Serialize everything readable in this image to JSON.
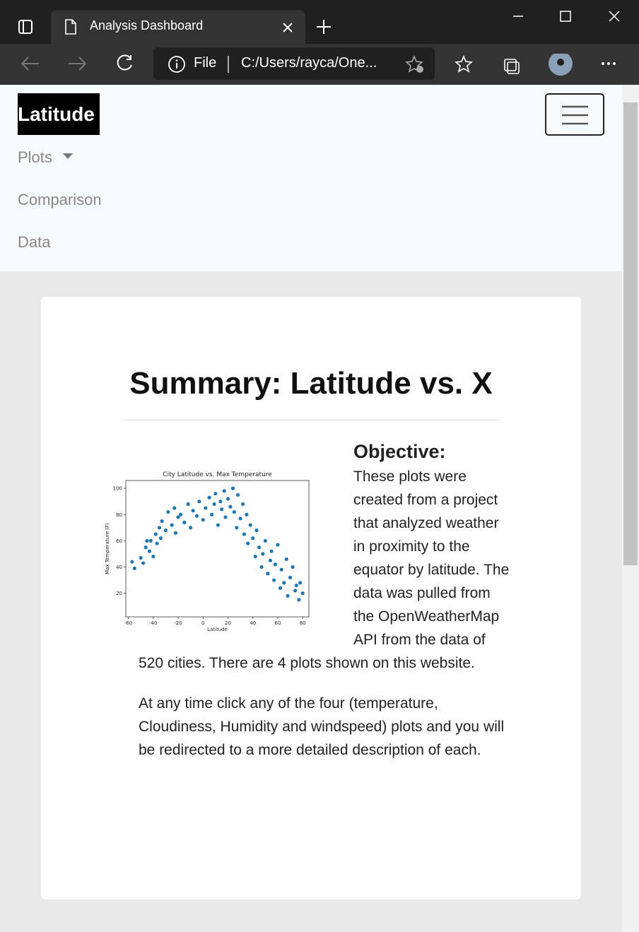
{
  "browser": {
    "tab_title": "Analysis Dashboard",
    "address_scheme": "File",
    "address": "C:/Users/rayca/One..."
  },
  "navbar": {
    "brand": "Latitude",
    "links": [
      "Plots",
      "Comparison",
      "Data"
    ]
  },
  "content": {
    "title": "Summary: Latitude vs. X",
    "objective_heading": "Objective:",
    "paragraphs": [
      "These plots were created from a project that analyzed weather in proximity to the equator by latitude. The data was pulled from the OpenWeatherMap API from the data of 520 cities. There are 4 plots shown on this website.",
      "At any time click any of the four (temperature, Cloudiness, Humidity and windspeed) plots and you will be redirected to a more detailed description of each."
    ]
  },
  "chart_data": {
    "type": "scatter",
    "title": "City Latitude vs. Max Temperature",
    "x_label": "Latitude",
    "y_label": "Max Temperature (F)",
    "color": "#1f77b4",
    "xlim": [
      -62,
      85
    ],
    "ylim": [
      2,
      106
    ],
    "xticks": [
      -60,
      -40,
      -20,
      0,
      20,
      40,
      60,
      80
    ],
    "yticks": [
      20,
      40,
      60,
      80,
      100
    ],
    "x": [
      -57,
      -55,
      -50,
      -48,
      -46,
      -45,
      -43,
      -42,
      -40,
      -38,
      -37,
      -35,
      -34,
      -33,
      -30,
      -28,
      -25,
      -23,
      -22,
      -20,
      -18,
      -15,
      -12,
      -10,
      -8,
      -5,
      -3,
      0,
      2,
      5,
      7,
      9,
      10,
      12,
      14,
      15,
      17,
      18,
      20,
      22,
      24,
      25,
      27,
      28,
      30,
      32,
      33,
      35,
      36,
      38,
      40,
      42,
      43,
      45,
      47,
      48,
      50,
      52,
      54,
      55,
      57,
      58,
      60,
      62,
      63,
      65,
      67,
      68,
      70,
      72,
      74,
      75,
      77,
      78,
      80
    ],
    "y": [
      44,
      39,
      47,
      43,
      55,
      60,
      52,
      60,
      48,
      65,
      58,
      70,
      62,
      75,
      68,
      82,
      72,
      85,
      66,
      78,
      80,
      74,
      88,
      70,
      83,
      79,
      90,
      76,
      85,
      93,
      80,
      88,
      96,
      72,
      90,
      84,
      98,
      78,
      92,
      86,
      100,
      82,
      70,
      95,
      77,
      88,
      65,
      80,
      58,
      72,
      62,
      48,
      68,
      55,
      40,
      50,
      60,
      35,
      45,
      52,
      30,
      42,
      57,
      24,
      38,
      28,
      46,
      18,
      32,
      40,
      22,
      26,
      15,
      28,
      20
    ]
  }
}
